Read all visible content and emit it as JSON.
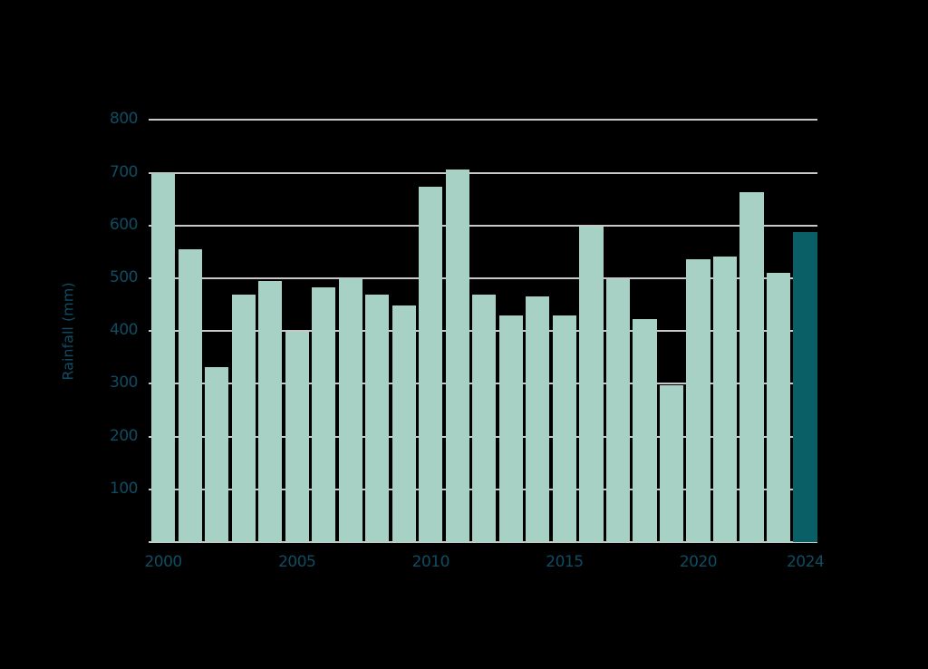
{
  "chart_data": {
    "type": "bar",
    "title": "",
    "xlabel": "",
    "ylabel": "Rainfall (mm)",
    "ylim": [
      0,
      800
    ],
    "yticks": [
      100,
      200,
      300,
      400,
      500,
      600,
      700,
      800
    ],
    "xtick_labels": [
      "2000",
      "2005",
      "2010",
      "2015",
      "2020",
      "2024"
    ],
    "grid": true,
    "legend": null,
    "categories": [
      "2000",
      "2001",
      "2002",
      "2003",
      "2004",
      "2005",
      "2006",
      "2007",
      "2008",
      "2009",
      "2010",
      "2011",
      "2012",
      "2013",
      "2014",
      "2015",
      "2016",
      "2017",
      "2018",
      "2019",
      "2020",
      "2021",
      "2022",
      "2023",
      "2024"
    ],
    "values": [
      700,
      555,
      332,
      469,
      495,
      398,
      482,
      500,
      469,
      449,
      674,
      707,
      469,
      430,
      466,
      430,
      598,
      498,
      422,
      298,
      536,
      541,
      663,
      510,
      588
    ],
    "colors": {
      "default_bar": "#a8d1c6",
      "highlight_bar": "#0a5f66",
      "highlight_category": "2024",
      "gridline": "#c8c8c8",
      "text": "#0f4c63",
      "background": "#000000"
    }
  }
}
